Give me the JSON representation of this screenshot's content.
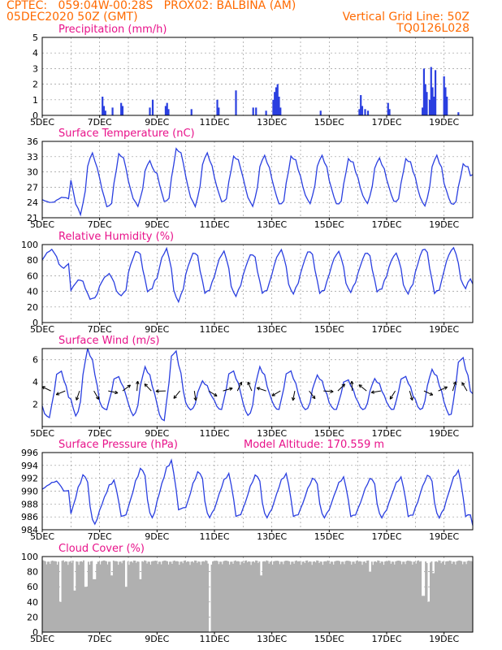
{
  "header": {
    "line1": "CPTEC:   059:04W-00:28S   PROX02: BALBINA (AM)",
    "line2_left": "05DEC2020 50Z (GMT)",
    "line2_right": "Vertical Grid Line: 50Z",
    "line3_right": "TQ0126L028"
  },
  "colors": {
    "header": "#ff6a00",
    "title": "#e8128a",
    "line": "#2a3fe0",
    "bar": "#2a3fe0",
    "cloud": "#b0b0b0",
    "grid": "#999999",
    "arrow": "#000000"
  },
  "x_tick_labels": [
    "5DEC",
    "7DEC",
    "9DEC",
    "11DEC",
    "13DEC",
    "15DEC",
    "17DEC",
    "19DEC"
  ],
  "chart_data": [
    {
      "type": "bar",
      "title": "Precipitation (mm/h)",
      "ylim": [
        0,
        5
      ],
      "yticks": [
        "0",
        "1",
        "2",
        "3",
        "4",
        "5"
      ],
      "x_days": [
        5,
        20
      ],
      "events": [
        {
          "x": 7.1,
          "y": 1.2
        },
        {
          "x": 7.15,
          "y": 0.6
        },
        {
          "x": 7.2,
          "y": 0.3
        },
        {
          "x": 7.45,
          "y": 0.5
        },
        {
          "x": 7.75,
          "y": 0.8
        },
        {
          "x": 7.8,
          "y": 0.6
        },
        {
          "x": 8.75,
          "y": 0.5
        },
        {
          "x": 8.85,
          "y": 1.0
        },
        {
          "x": 9.3,
          "y": 0.6
        },
        {
          "x": 9.35,
          "y": 0.8
        },
        {
          "x": 9.4,
          "y": 0.4
        },
        {
          "x": 10.2,
          "y": 0.4
        },
        {
          "x": 11.1,
          "y": 1.0
        },
        {
          "x": 11.15,
          "y": 0.5
        },
        {
          "x": 11.75,
          "y": 1.6
        },
        {
          "x": 12.35,
          "y": 0.5
        },
        {
          "x": 12.45,
          "y": 0.5
        },
        {
          "x": 12.8,
          "y": 0.3
        },
        {
          "x": 13.05,
          "y": 1.0
        },
        {
          "x": 13.1,
          "y": 1.5
        },
        {
          "x": 13.15,
          "y": 1.8
        },
        {
          "x": 13.2,
          "y": 2.0
        },
        {
          "x": 13.25,
          "y": 1.2
        },
        {
          "x": 13.3,
          "y": 0.5
        },
        {
          "x": 14.7,
          "y": 0.3
        },
        {
          "x": 16.05,
          "y": 0.4
        },
        {
          "x": 16.1,
          "y": 1.3
        },
        {
          "x": 16.15,
          "y": 0.6
        },
        {
          "x": 16.25,
          "y": 0.4
        },
        {
          "x": 16.35,
          "y": 0.3
        },
        {
          "x": 17.05,
          "y": 0.8
        },
        {
          "x": 17.1,
          "y": 0.4
        },
        {
          "x": 18.25,
          "y": 0.5
        },
        {
          "x": 18.3,
          "y": 3.0
        },
        {
          "x": 18.35,
          "y": 2.0
        },
        {
          "x": 18.4,
          "y": 1.5
        },
        {
          "x": 18.5,
          "y": 1.0
        },
        {
          "x": 18.55,
          "y": 3.1
        },
        {
          "x": 18.6,
          "y": 1.8
        },
        {
          "x": 18.65,
          "y": 1.2
        },
        {
          "x": 18.7,
          "y": 2.9
        },
        {
          "x": 19.0,
          "y": 2.5
        },
        {
          "x": 19.05,
          "y": 1.8
        },
        {
          "x": 19.1,
          "y": 1.2
        },
        {
          "x": 19.5,
          "y": 0.2
        }
      ]
    },
    {
      "type": "line",
      "title": "Surface Temperature (nC)",
      "ylim": [
        21,
        36
      ],
      "yticks": [
        "21",
        "24",
        "27",
        "30",
        "33",
        "36"
      ],
      "x_days": [
        5,
        20
      ],
      "daily": {
        "min": [
          24.0,
          22.0,
          23.0,
          23.5,
          24.0,
          23.5,
          24.0,
          23.5,
          23.5,
          24.0,
          23.5,
          24.0,
          24.0,
          23.5,
          23.5,
          24.0
        ],
        "max": [
          25.0,
          33.5,
          33.5,
          32.0,
          34.5,
          33.5,
          33.0,
          33.0,
          33.0,
          33.0,
          32.5,
          32.5,
          32.5,
          33.0,
          31.5,
          33.5
        ]
      },
      "peak_hour": 17,
      "min_hour": 8
    },
    {
      "type": "line",
      "title": "Relative Humidity (%)",
      "ylim": [
        0,
        100
      ],
      "yticks": [
        "0",
        "20",
        "40",
        "60",
        "80",
        "100"
      ],
      "x_days": [
        5,
        20
      ],
      "daily": {
        "min": [
          70,
          30,
          35,
          40,
          28,
          38,
          35,
          38,
          38,
          38,
          40,
          40,
          38,
          38,
          45,
          40
        ],
        "max": [
          93,
          55,
          62,
          92,
          93,
          90,
          90,
          88,
          92,
          92,
          90,
          90,
          88,
          95,
          95,
          60
        ]
      },
      "peak_hour": 8,
      "min_hour": 17
    },
    {
      "type": "line",
      "title": "Surface Wind (m/s)",
      "ylim": [
        0,
        7
      ],
      "yticks": [
        "2",
        "4",
        "6"
      ],
      "x_days": [
        5,
        20
      ],
      "daily": {
        "min": [
          0.8,
          1.0,
          1.5,
          1.0,
          0.5,
          1.5,
          1.5,
          1.0,
          1.5,
          1.5,
          1.5,
          1.5,
          1.5,
          1.5,
          1.0,
          1.5
        ],
        "max": [
          5.0,
          6.8,
          4.5,
          5.2,
          6.8,
          4.0,
          5.0,
          5.2,
          5.0,
          4.5,
          4.2,
          4.2,
          4.5,
          5.0,
          6.2,
          6.8
        ]
      },
      "peak_hour": 14,
      "min_hour": 5
    },
    {
      "type": "line",
      "title": "Surface Pressure (hPa)",
      "annotation": "Model Altitude: 170.559  m",
      "ylim": [
        984,
        996
      ],
      "yticks": [
        "984",
        "986",
        "988",
        "990",
        "992",
        "994",
        "996"
      ],
      "x_days": [
        5,
        20
      ],
      "daily": {
        "min": [
          990.0,
          985.0,
          986.0,
          986.0,
          987.0,
          986.0,
          986.0,
          986.0,
          986.0,
          986.0,
          986.0,
          986.0,
          986.0,
          986.0,
          986.0,
          984.0
        ],
        "max": [
          991.5,
          992.5,
          991.5,
          993.5,
          994.5,
          993.0,
          992.5,
          992.5,
          992.5,
          992.0,
          992.0,
          992.0,
          992.0,
          992.5,
          993.0,
          987.0
        ]
      },
      "peak_hour": 12,
      "min_hour": 19
    },
    {
      "type": "area",
      "title": "Cloud Cover (%)",
      "ylim": [
        0,
        100
      ],
      "yticks": [
        "0",
        "20",
        "40",
        "60",
        "80",
        "100"
      ],
      "x_days": [
        5,
        20
      ],
      "base_value": 95,
      "dips": [
        {
          "x": 5.6,
          "y": 40
        },
        {
          "x": 6.1,
          "y": 55
        },
        {
          "x": 6.5,
          "y": 60
        },
        {
          "x": 6.8,
          "y": 70
        },
        {
          "x": 7.4,
          "y": 75
        },
        {
          "x": 7.9,
          "y": 60
        },
        {
          "x": 8.4,
          "y": 70
        },
        {
          "x": 10.8,
          "y": 0
        },
        {
          "x": 12.6,
          "y": 75
        },
        {
          "x": 16.4,
          "y": 80
        },
        {
          "x": 18.25,
          "y": 48
        },
        {
          "x": 18.45,
          "y": 40
        },
        {
          "x": 18.6,
          "y": 78
        }
      ]
    }
  ]
}
